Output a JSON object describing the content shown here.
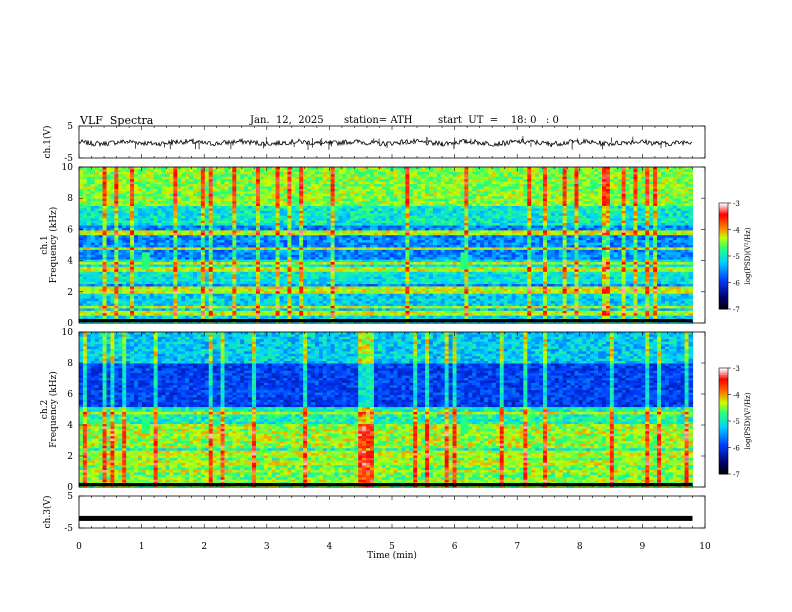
{
  "header": {
    "title": "VLF  Spectra",
    "date": "Jan.  12,  2025",
    "station": "station= ATH",
    "start": "start  UT  =    18: 0   : 0"
  },
  "colors": {
    "background": "#ffffff",
    "axis": "#000000",
    "spec_low": "#000060",
    "spec_mid": "#00d0ff",
    "spec_high": "#ff2000"
  },
  "colorbar": {
    "label": "log(PSD)(V²/Hz)",
    "ticks": [
      "-3",
      "-4",
      "-5",
      "-6",
      "-7"
    ]
  },
  "chart_data": [
    {
      "type": "line",
      "name": "ch1-waveform",
      "ylabel": "ch.1(V)",
      "ylim": [
        -5,
        5
      ],
      "yticks": [
        "5",
        "-5"
      ],
      "xlim": [
        0,
        10
      ],
      "xlabel": "",
      "mean": -0.2,
      "spike_range": [
        -2.5,
        2
      ]
    },
    {
      "type": "heatmap",
      "name": "ch1-spectrogram",
      "ylabel": "ch.1\nFrequency (kHz)",
      "ylim": [
        0,
        10
      ],
      "yticks": [
        "10",
        "8",
        "6",
        "4",
        "2",
        "0"
      ],
      "xlim": [
        0,
        10
      ],
      "color_scale": [
        -7,
        -3
      ],
      "bands_khz": [
        0.6,
        1.0,
        2.0,
        2.2,
        3.4,
        3.8,
        4.8,
        5.8
      ],
      "bursts_min": [
        1.05,
        6.15
      ]
    },
    {
      "type": "heatmap",
      "name": "ch2-spectrogram",
      "ylabel": "ch.2\nFrequency (kHz)",
      "ylim": [
        0,
        10
      ],
      "yticks": [
        "10",
        "8",
        "6",
        "4",
        "2",
        "0"
      ],
      "xlim": [
        0,
        10
      ],
      "color_scale": [
        -7,
        -3
      ],
      "bands_khz": [
        0.4,
        1.0,
        1.6,
        2.0,
        2.2,
        3.5,
        4.8
      ],
      "bursts_min": [
        1.05,
        6.15
      ]
    },
    {
      "type": "line",
      "name": "ch3-waveform",
      "ylabel": "ch.3(V)",
      "ylim": [
        -5,
        5
      ],
      "yticks": [
        "5",
        "-5"
      ],
      "xlim": [
        0,
        10
      ],
      "xlabel": "Time  (min)",
      "xticks": [
        "0",
        "1",
        "2",
        "3",
        "4",
        "5",
        "6",
        "7",
        "8",
        "9",
        "10"
      ],
      "mean": -2.0,
      "end_min": 9.8
    }
  ]
}
